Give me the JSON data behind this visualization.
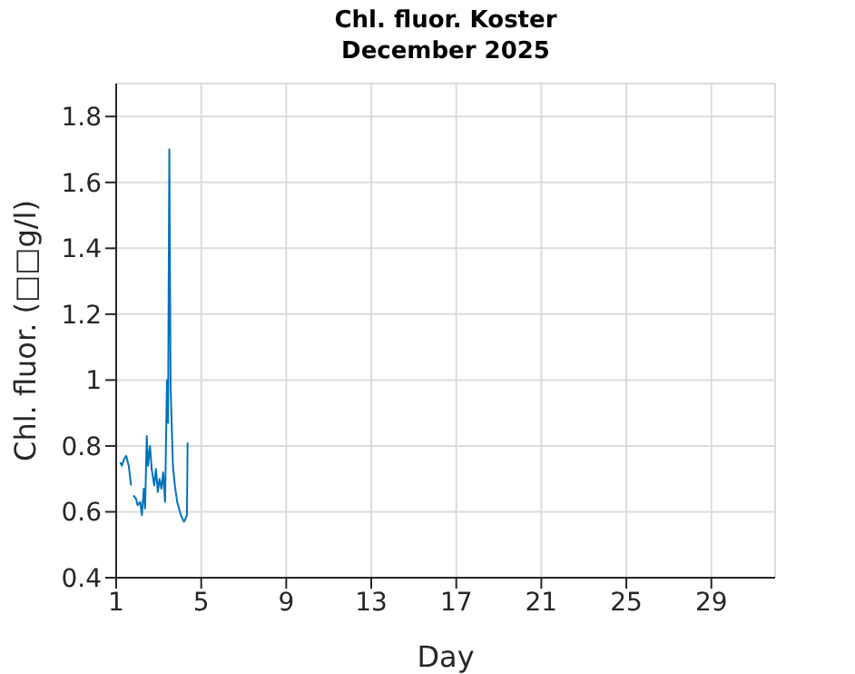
{
  "chart_data": {
    "type": "line",
    "title": "Chl. fluor. Koster",
    "subtitle": "December 2025",
    "xlabel": "Day",
    "ylabel": "Chl. fluor. (□□g/l)",
    "xlim": [
      1,
      32
    ],
    "xticks": [
      1,
      5,
      9,
      13,
      17,
      21,
      25,
      29
    ],
    "ylim": [
      0.4,
      1.9
    ],
    "yticks": [
      0.4,
      0.6,
      0.8,
      1,
      1.2,
      1.4,
      1.6,
      1.8
    ],
    "grid": true,
    "line_style": "solid",
    "marker": "none",
    "x": [
      1.19,
      1.27,
      1.37,
      1.47,
      1.59,
      1.7,
      1.75,
      1.81,
      1.93,
      2.01,
      2.13,
      2.21,
      2.3,
      2.36,
      2.44,
      2.5,
      2.59,
      2.67,
      2.79,
      2.87,
      2.96,
      3.04,
      3.13,
      3.21,
      3.3,
      3.39,
      3.44,
      3.5,
      3.56,
      3.67,
      3.76,
      3.87,
      4.04,
      4.19,
      4.27,
      4.33,
      4.36
    ],
    "series": [
      {
        "color": "#0072bd",
        "values": [
          0.75,
          0.74,
          0.76,
          0.77,
          0.74,
          0.68,
          null,
          0.65,
          0.64,
          0.62,
          0.63,
          0.59,
          0.67,
          0.61,
          0.83,
          0.74,
          0.8,
          0.73,
          0.68,
          0.73,
          0.66,
          0.7,
          0.67,
          0.72,
          0.63,
          1.0,
          0.87,
          1.7,
          0.98,
          0.74,
          0.68,
          0.63,
          0.59,
          0.57,
          0.58,
          0.59,
          0.81
        ]
      }
    ]
  }
}
